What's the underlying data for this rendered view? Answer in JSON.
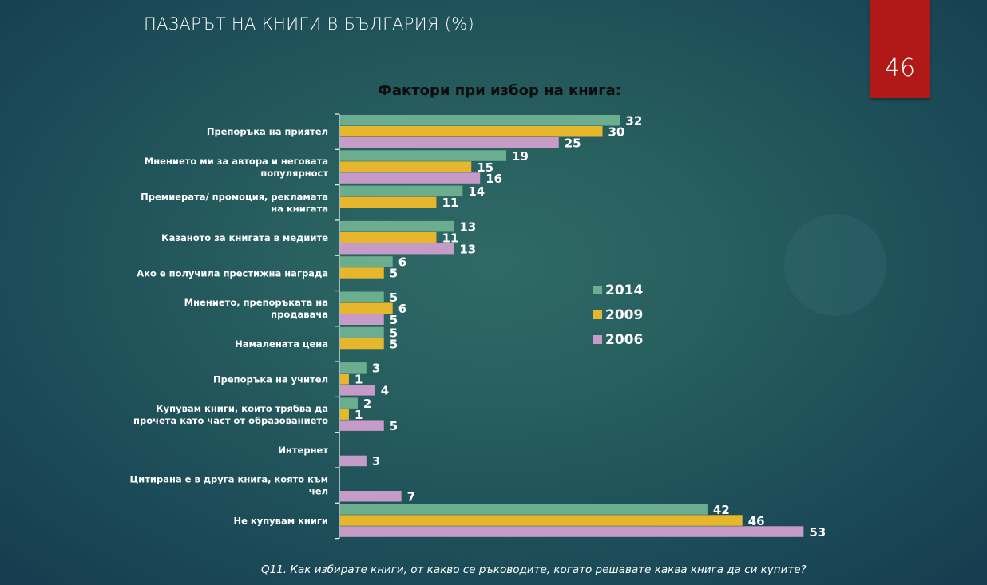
{
  "slide": {
    "title": "ПАЗАРЪТ НА КНИГИ В БЪЛГАРИЯ (%)",
    "page_number": "46",
    "footnote": "Q11. Как избирате книги, от какво се ръководите, когато решавате каква книга да си купите?"
  },
  "colors": {
    "s2014": "#6aae8f",
    "s2009": "#e6b72c",
    "s2006": "#c69bc8",
    "badge": "#b01917"
  },
  "chart_data": {
    "type": "bar",
    "orientation": "horizontal",
    "title": "Фактори при избор на книга:",
    "xlabel": "",
    "ylabel": "",
    "xlim": [
      0,
      55
    ],
    "grid": false,
    "legend_position": "right",
    "categories": [
      [
        "Препоръка на приятел"
      ],
      [
        "Мнението ми за автора и неговата",
        "популярност"
      ],
      [
        "Премиерата/ промоция, рекламата",
        "на книгата"
      ],
      [
        "Казаното за книгата в медиите"
      ],
      [
        "Ако е получила престижна награда"
      ],
      [
        "Мнението, препоръката на",
        "продавача"
      ],
      [
        "Намалената цена"
      ],
      [
        "Препоръка на учител"
      ],
      [
        "Купувам книги, които трябва да",
        "прочета като част от образованието"
      ],
      [
        "Интернет"
      ],
      [
        "Цитирана е в друга книга, която към",
        "чел"
      ],
      [
        "Не купувам книги"
      ]
    ],
    "series": [
      {
        "name": "2014",
        "color_key": "s2014",
        "values": [
          32,
          19,
          14,
          13,
          6,
          5,
          5,
          3,
          2,
          null,
          null,
          42
        ]
      },
      {
        "name": "2009",
        "color_key": "s2009",
        "values": [
          30,
          15,
          11,
          11,
          5,
          6,
          5,
          1,
          1,
          null,
          null,
          46
        ]
      },
      {
        "name": "2006",
        "color_key": "s2006",
        "values": [
          25,
          16,
          null,
          13,
          null,
          5,
          null,
          4,
          5,
          3,
          7,
          53
        ]
      }
    ]
  }
}
